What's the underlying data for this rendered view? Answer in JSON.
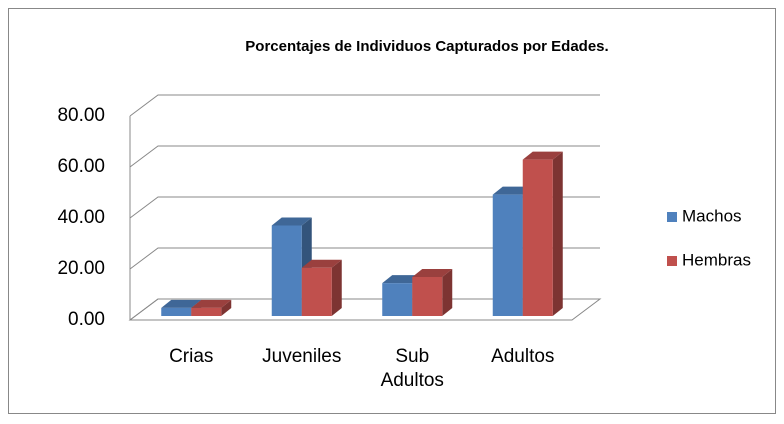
{
  "chart_data": {
    "type": "bar3d",
    "title": "Porcentajes de Individuos Capturados por  Edades.",
    "categories": [
      "Crias",
      "Juveniles",
      "Sub Adultos",
      "Adultos"
    ],
    "series": [
      {
        "name": "Machos",
        "color": "#4f81bd",
        "values": [
          3.2,
          35.5,
          12.9,
          47.6
        ]
      },
      {
        "name": "Hembras",
        "color": "#c0504d",
        "values": [
          3.2,
          18.9,
          15.3,
          61.3
        ]
      }
    ],
    "ylim": [
      0,
      80
    ],
    "yticks": [
      {
        "value": 0,
        "label": "0.00"
      },
      {
        "value": 20,
        "label": "20.00"
      },
      {
        "value": 40,
        "label": "40.00"
      },
      {
        "value": 60,
        "label": "60.00"
      },
      {
        "value": 80,
        "label": "80.00"
      }
    ],
    "grid": true,
    "legend": "right"
  }
}
